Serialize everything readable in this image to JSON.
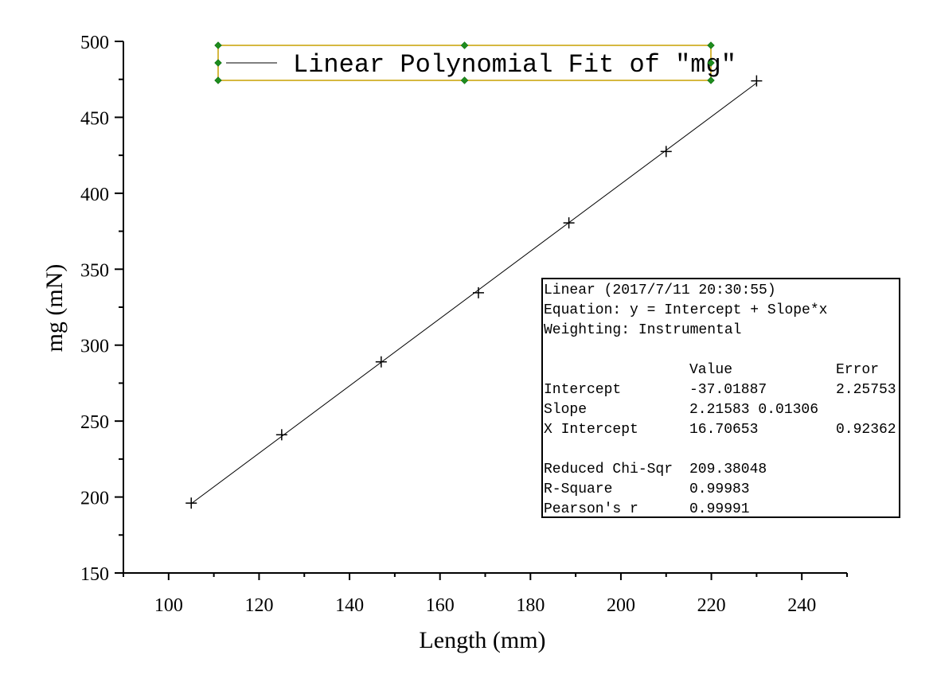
{
  "chart_data": {
    "type": "scatter",
    "title": "",
    "xlabel": "Length (mm)",
    "ylabel": "mg (mN)",
    "xlim": [
      90,
      250
    ],
    "ylim": [
      150,
      500
    ],
    "x_ticks": [
      "100",
      "120",
      "140",
      "160",
      "180",
      "200",
      "220",
      "240"
    ],
    "y_ticks": [
      "150",
      "200",
      "250",
      "300",
      "350",
      "400",
      "450",
      "500"
    ],
    "grid": false,
    "series": [
      {
        "name": "",
        "marker": "+",
        "x": [
          105,
          125,
          147,
          168.5,
          188.5,
          210,
          230
        ],
        "y": [
          196,
          241,
          289,
          334.5,
          380.5,
          427.5,
          474
        ]
      }
    ],
    "fit": {
      "legend_label": "Linear Polynomial Fit of \"mg\"",
      "intercept": -37.01887,
      "slope": 2.21583,
      "x_range": [
        105,
        230
      ]
    },
    "stats_box": {
      "header": [
        "Linear (2017/7/11 20:30:55)",
        "Equation: y = Intercept + Slope*x",
        "Weighting: Instrumental"
      ],
      "columns": [
        "",
        "Value",
        "Error"
      ],
      "rows": [
        [
          "Intercept",
          "-37.01887",
          "2.25753"
        ],
        [
          "Slope",
          "2.21583 0.01306",
          ""
        ],
        [
          "X Intercept",
          "16.70653",
          "0.92362"
        ]
      ],
      "footer": [
        [
          "Reduced Chi-Sqr",
          "209.38048"
        ],
        [
          "R-Square",
          "0.99983"
        ],
        [
          "Pearson's r",
          "0.99991"
        ]
      ]
    },
    "colors": {
      "axis": "#000000",
      "line": "#000000",
      "legend_border": "#c8a000",
      "selection_handle": "#1e8c1e"
    }
  }
}
